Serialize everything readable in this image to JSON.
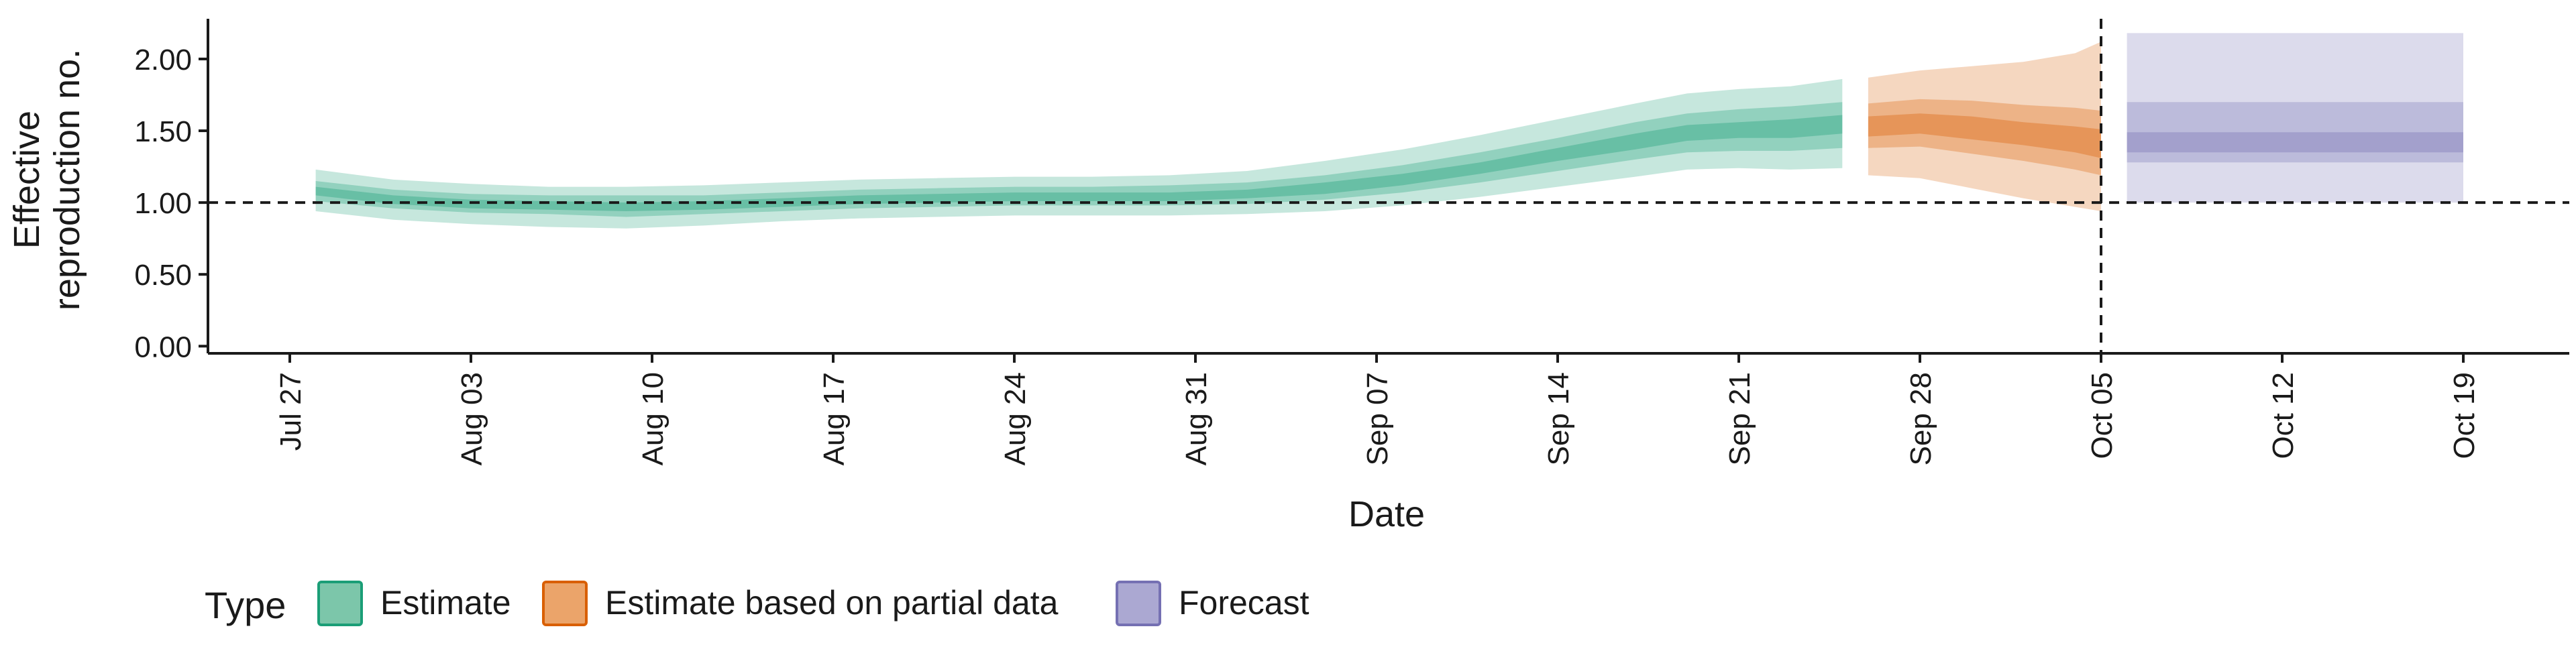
{
  "chart_data": {
    "type": "area",
    "xlabel": "Date",
    "ylabel": "Effective\nreproduction no.",
    "ylim": [
      -0.05,
      2.28
    ],
    "y_ticks": [
      "0.00",
      "0.50",
      "1.00",
      "1.50",
      "2.00"
    ],
    "x_start": "2020-07-23",
    "x_end": "2020-10-26",
    "x_ticks": [
      {
        "date": "2020-07-27",
        "label": "Jul 27"
      },
      {
        "date": "2020-08-03",
        "label": "Aug 03"
      },
      {
        "date": "2020-08-10",
        "label": "Aug 10"
      },
      {
        "date": "2020-08-17",
        "label": "Aug 17"
      },
      {
        "date": "2020-08-24",
        "label": "Aug 24"
      },
      {
        "date": "2020-08-31",
        "label": "Aug 31"
      },
      {
        "date": "2020-09-07",
        "label": "Sep 07"
      },
      {
        "date": "2020-09-14",
        "label": "Sep 14"
      },
      {
        "date": "2020-09-21",
        "label": "Sep 21"
      },
      {
        "date": "2020-09-28",
        "label": "Sep 28"
      },
      {
        "date": "2020-10-05",
        "label": "Oct 05"
      },
      {
        "date": "2020-10-12",
        "label": "Oct 12"
      },
      {
        "date": "2020-10-19",
        "label": "Oct 19"
      }
    ],
    "reference_line_y": 1.0,
    "vertical_line_date": "2020-10-05",
    "legend": {
      "title": "Type",
      "placement": "bottom-left",
      "entries": [
        "Estimate",
        "Estimate based on partial data",
        "Forecast"
      ]
    },
    "colors": {
      "Estimate": "#1b9e77",
      "Estimate based on partial data": "#d95f02",
      "Forecast": "#7570b3",
      "legend_fill": {
        "Estimate": "#7cc6aa",
        "Estimate based on partial data": "#eba46a",
        "Forecast": "#aba8d2"
      }
    },
    "series": [
      {
        "name": "Estimate",
        "x": [
          "2020-07-28",
          "2020-07-31",
          "2020-08-03",
          "2020-08-06",
          "2020-08-09",
          "2020-08-12",
          "2020-08-15",
          "2020-08-18",
          "2020-08-21",
          "2020-08-24",
          "2020-08-27",
          "2020-08-30",
          "2020-09-02",
          "2020-09-05",
          "2020-09-08",
          "2020-09-11",
          "2020-09-14",
          "2020-09-17",
          "2020-09-19",
          "2020-09-21",
          "2020-09-23",
          "2020-09-25"
        ],
        "median": [
          1.08,
          1.02,
          0.99,
          0.98,
          0.97,
          0.98,
          1.0,
          1.02,
          1.03,
          1.04,
          1.04,
          1.04,
          1.06,
          1.1,
          1.16,
          1.24,
          1.33,
          1.42,
          1.48,
          1.5,
          1.51,
          1.54
        ],
        "upper_20": [
          1.11,
          1.05,
          1.02,
          1.01,
          1.0,
          1.01,
          1.03,
          1.05,
          1.06,
          1.07,
          1.07,
          1.07,
          1.09,
          1.14,
          1.2,
          1.28,
          1.38,
          1.48,
          1.54,
          1.56,
          1.58,
          1.61
        ],
        "lower_20": [
          1.05,
          0.99,
          0.96,
          0.95,
          0.94,
          0.95,
          0.97,
          0.99,
          1.0,
          1.01,
          1.01,
          1.01,
          1.03,
          1.06,
          1.12,
          1.2,
          1.29,
          1.37,
          1.43,
          1.45,
          1.45,
          1.48
        ],
        "upper_50": [
          1.15,
          1.09,
          1.06,
          1.05,
          1.05,
          1.05,
          1.07,
          1.09,
          1.1,
          1.11,
          1.11,
          1.12,
          1.14,
          1.19,
          1.26,
          1.35,
          1.45,
          1.56,
          1.62,
          1.65,
          1.67,
          1.7
        ],
        "lower_50": [
          1.01,
          0.96,
          0.93,
          0.92,
          0.9,
          0.92,
          0.94,
          0.96,
          0.97,
          0.98,
          0.98,
          0.98,
          0.99,
          1.02,
          1.07,
          1.14,
          1.22,
          1.3,
          1.35,
          1.36,
          1.36,
          1.38
        ],
        "upper_90": [
          1.23,
          1.16,
          1.13,
          1.11,
          1.11,
          1.12,
          1.14,
          1.16,
          1.17,
          1.18,
          1.18,
          1.19,
          1.22,
          1.29,
          1.37,
          1.47,
          1.58,
          1.69,
          1.76,
          1.79,
          1.81,
          1.86
        ],
        "lower_90": [
          0.94,
          0.88,
          0.85,
          0.83,
          0.82,
          0.84,
          0.87,
          0.89,
          0.9,
          0.91,
          0.91,
          0.91,
          0.92,
          0.94,
          0.98,
          1.04,
          1.11,
          1.18,
          1.23,
          1.24,
          1.23,
          1.24
        ]
      },
      {
        "name": "Estimate based on partial data",
        "x": [
          "2020-09-26",
          "2020-09-28",
          "2020-09-30",
          "2020-10-02",
          "2020-10-04",
          "2020-10-05"
        ],
        "median": [
          1.53,
          1.55,
          1.52,
          1.48,
          1.44,
          1.41
        ],
        "upper_20": [
          1.6,
          1.62,
          1.6,
          1.56,
          1.53,
          1.51
        ],
        "lower_20": [
          1.46,
          1.48,
          1.44,
          1.4,
          1.35,
          1.31
        ],
        "upper_50": [
          1.69,
          1.72,
          1.71,
          1.68,
          1.66,
          1.64
        ],
        "lower_50": [
          1.38,
          1.39,
          1.34,
          1.29,
          1.23,
          1.19
        ],
        "upper_90": [
          1.87,
          1.92,
          1.95,
          1.98,
          2.04,
          2.12
        ],
        "lower_90": [
          1.19,
          1.17,
          1.1,
          1.03,
          0.97,
          0.94
        ]
      },
      {
        "name": "Forecast",
        "x": [
          "2020-10-06",
          "2020-10-19"
        ],
        "median": [
          1.42,
          1.42
        ],
        "upper_20": [
          1.49,
          1.49
        ],
        "lower_20": [
          1.35,
          1.35
        ],
        "upper_50": [
          1.7,
          1.7
        ],
        "lower_50": [
          1.28,
          1.28
        ],
        "upper_90": [
          2.18,
          2.18
        ],
        "lower_90": [
          1.0,
          1.0
        ]
      }
    ]
  }
}
